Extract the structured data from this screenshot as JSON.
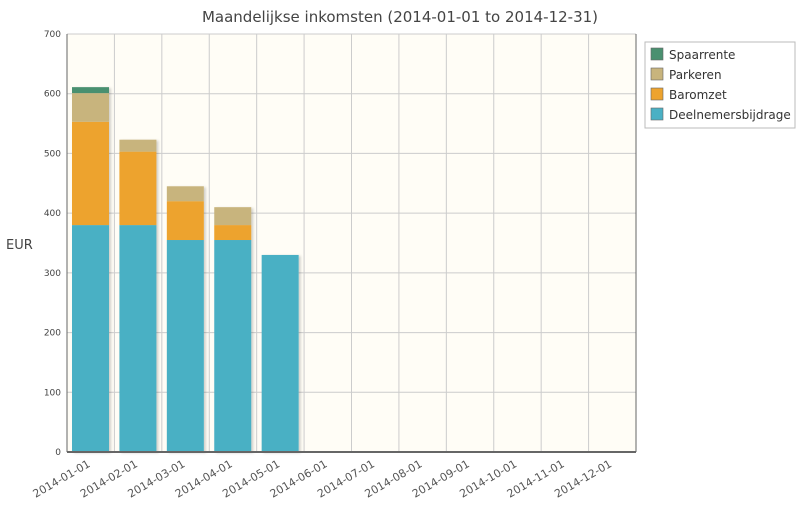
{
  "chart_data": {
    "type": "bar",
    "stacked": true,
    "title": "Maandelijkse inkomsten (2014-01-01 to 2014-12-31)",
    "xlabel": "",
    "ylabel": "EUR",
    "ylim": [
      0,
      700
    ],
    "yticks": [
      "0",
      "100",
      "200",
      "300",
      "400",
      "500",
      "600",
      "700"
    ],
    "grid": true,
    "legend_position": "top-right",
    "categories": [
      "2014-01-01",
      "2014-02-01",
      "2014-03-01",
      "2014-04-01",
      "2014-05-01",
      "2014-06-01",
      "2014-07-01",
      "2014-08-01",
      "2014-09-01",
      "2014-10-01",
      "2014-11-01",
      "2014-12-01"
    ],
    "series": [
      {
        "name": "Deelnemersbijdrage",
        "color": "#4ab0c4",
        "values": [
          380,
          380,
          355,
          355,
          330,
          0,
          0,
          0,
          0,
          0,
          0,
          0
        ]
      },
      {
        "name": "Baromzet",
        "color": "#eda32e",
        "values": [
          173,
          123,
          65,
          25,
          0,
          0,
          0,
          0,
          0,
          0,
          0,
          0
        ]
      },
      {
        "name": "Parkeren",
        "color": "#c8b47d",
        "values": [
          48,
          20,
          25,
          30,
          0,
          0,
          0,
          0,
          0,
          0,
          0,
          0
        ]
      },
      {
        "name": "Spaarrente",
        "color": "#4a9070",
        "values": [
          10,
          0,
          0,
          0,
          0,
          0,
          0,
          0,
          0,
          0,
          0,
          0
        ]
      }
    ],
    "legend_order": [
      "Spaarrente",
      "Parkeren",
      "Baromzet",
      "Deelnemersbijdrage"
    ],
    "plot_background": "#fffdf6",
    "grid_color": "#cccccc",
    "axis_color": "#666666"
  }
}
